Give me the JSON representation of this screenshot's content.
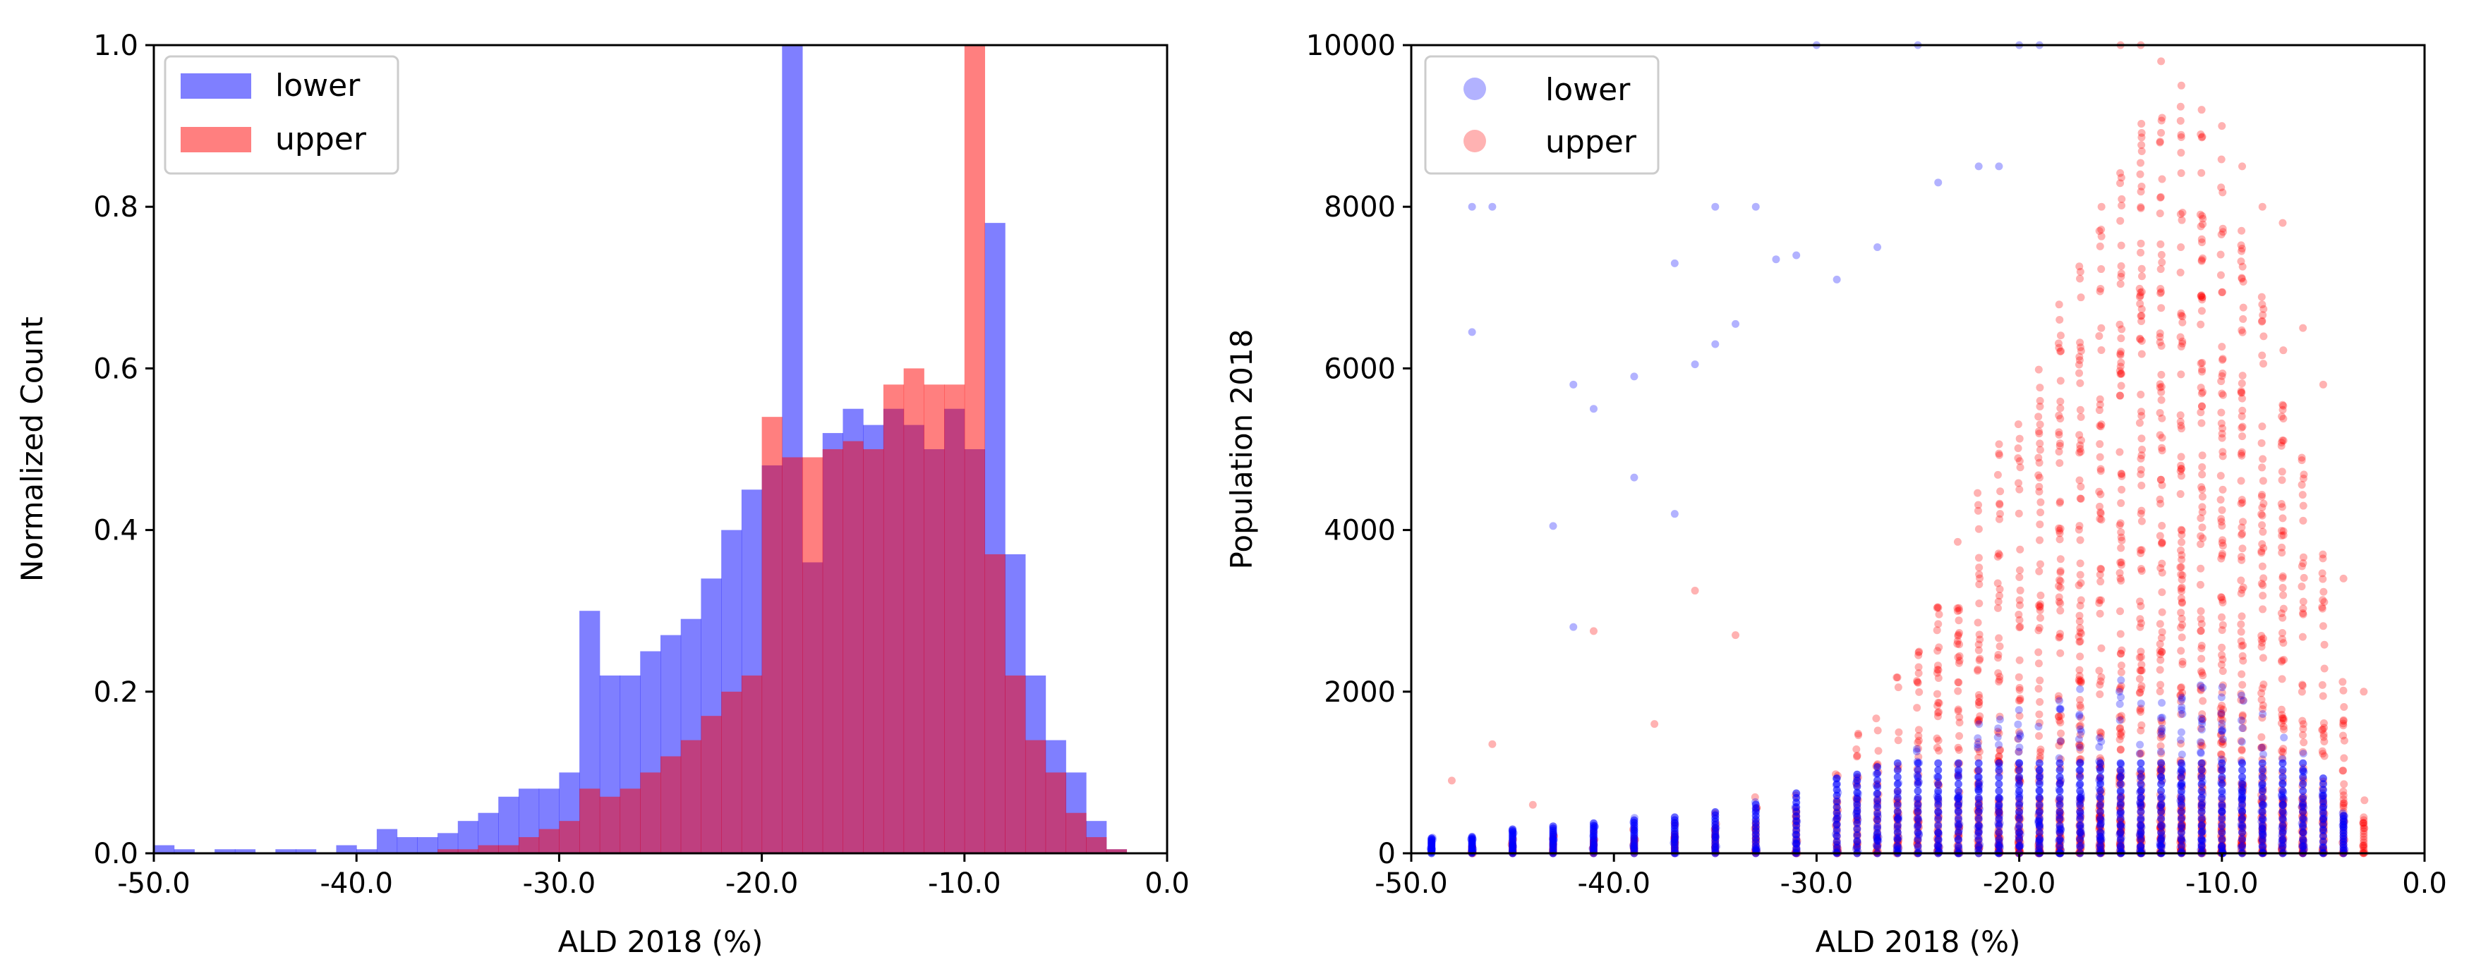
{
  "colors": {
    "lower": "#0000ff",
    "upper": "#ff0000",
    "axis": "#000000",
    "legend_frame": "#cccccc"
  },
  "chart_data": [
    {
      "type": "histogram",
      "title": "",
      "xlabel": "ALD 2018 (%)",
      "ylabel": "Normalized Count",
      "xlim": [
        -50,
        0
      ],
      "ylim": [
        0,
        1.0
      ],
      "xticks": [
        -50,
        -40,
        -30,
        -20,
        -10,
        0
      ],
      "xtick_labels": [
        "-50.0",
        "-40.0",
        "-30.0",
        "-20.0",
        "-10.0",
        "0.0"
      ],
      "yticks": [
        0,
        0.2,
        0.4,
        0.6,
        0.8,
        1.0
      ],
      "ytick_labels": [
        "0.0",
        "0.2",
        "0.4",
        "0.6",
        "0.8",
        "1.0"
      ],
      "legend": [
        "lower",
        "upper"
      ],
      "legend_position": "top-left",
      "bin_width": 1,
      "bin_start": -50,
      "series": [
        {
          "name": "lower",
          "color": "#0000ff",
          "alpha": 0.5,
          "values": [
            0.01,
            0.005,
            0.0,
            0.005,
            0.005,
            0.0,
            0.005,
            0.005,
            0.0,
            0.01,
            0.005,
            0.03,
            0.02,
            0.02,
            0.025,
            0.04,
            0.05,
            0.07,
            0.08,
            0.08,
            0.1,
            0.3,
            0.22,
            0.22,
            0.25,
            0.27,
            0.29,
            0.34,
            0.4,
            0.45,
            0.48,
            1.0,
            0.36,
            0.52,
            0.55,
            0.53,
            0.55,
            0.53,
            0.5,
            0.55,
            0.5,
            0.78,
            0.37,
            0.22,
            0.14,
            0.1,
            0.04,
            0.005,
            0.0,
            0.0
          ]
        },
        {
          "name": "upper",
          "color": "#ff0000",
          "alpha": 0.5,
          "values": [
            0.0,
            0.0,
            0.0,
            0.0,
            0.0,
            0.0,
            0.0,
            0.0,
            0.0,
            0.0,
            0.0,
            0.0,
            0.0,
            0.0,
            0.005,
            0.005,
            0.01,
            0.01,
            0.02,
            0.03,
            0.04,
            0.08,
            0.07,
            0.08,
            0.1,
            0.12,
            0.14,
            0.17,
            0.2,
            0.22,
            0.54,
            0.49,
            0.49,
            0.5,
            0.51,
            0.5,
            0.58,
            0.6,
            0.58,
            0.58,
            1.0,
            0.37,
            0.22,
            0.14,
            0.1,
            0.05,
            0.02,
            0.005,
            0.0,
            0.0
          ]
        }
      ]
    },
    {
      "type": "scatter",
      "title": "",
      "xlabel": "ALD 2018 (%)",
      "ylabel": "Population 2018",
      "xlim": [
        -50,
        0
      ],
      "ylim": [
        0,
        10000
      ],
      "xticks": [
        -50,
        -40,
        -30,
        -20,
        -10,
        0
      ],
      "xtick_labels": [
        "-50.0",
        "-40.0",
        "-30.0",
        "-20.0",
        "-10.0",
        "0.0"
      ],
      "yticks": [
        0,
        2000,
        4000,
        6000,
        8000,
        10000
      ],
      "ytick_labels": [
        "0",
        "2000",
        "4000",
        "6000",
        "8000",
        "10000"
      ],
      "legend": [
        "lower",
        "upper"
      ],
      "legend_position": "top-left",
      "series": [
        {
          "name": "lower",
          "color": "#0000ff",
          "alpha": 0.3,
          "outliers": [
            [
              -47,
              8000
            ],
            [
              -46,
              8000
            ],
            [
              -47,
              6450
            ],
            [
              -42,
              5800
            ],
            [
              -41,
              5500
            ],
            [
              -39,
              5900
            ],
            [
              -39,
              4650
            ],
            [
              -43,
              4050
            ],
            [
              -42,
              2800
            ],
            [
              -37,
              7300
            ],
            [
              -37,
              4200
            ],
            [
              -35,
              8000
            ],
            [
              -33,
              8000
            ],
            [
              -36,
              6050
            ],
            [
              -35,
              6300
            ],
            [
              -34,
              6550
            ],
            [
              -32,
              7350
            ],
            [
              -31,
              7400
            ],
            [
              -29,
              7100
            ],
            [
              -27,
              7500
            ],
            [
              -24,
              8300
            ],
            [
              -22,
              8500
            ],
            [
              -21,
              8500
            ],
            [
              -20,
              10000
            ],
            [
              -19,
              10000
            ],
            [
              -30,
              10000
            ],
            [
              -25,
              10000
            ]
          ],
          "columns": [
            [
              -49,
              200
            ],
            [
              -47,
              220
            ],
            [
              -45,
              320
            ],
            [
              -43,
              360
            ],
            [
              -41,
              400
            ],
            [
              -39,
              440
            ],
            [
              -37,
              480
            ],
            [
              -35,
              550
            ],
            [
              -33,
              650
            ],
            [
              -31,
              800
            ],
            [
              -29,
              1000
            ],
            [
              -28,
              1050
            ],
            [
              -27,
              1150
            ],
            [
              -26,
              1250
            ],
            [
              -25,
              1350
            ],
            [
              -24,
              1450
            ],
            [
              -23,
              1550
            ],
            [
              -22,
              1600
            ],
            [
              -21,
              1700
            ],
            [
              -20,
              1800
            ],
            [
              -19,
              1900
            ],
            [
              -18,
              2000
            ],
            [
              -17,
              2050
            ],
            [
              -16,
              2100
            ],
            [
              -15,
              2150
            ],
            [
              -14,
              2150
            ],
            [
              -13,
              2200
            ],
            [
              -12,
              2200
            ],
            [
              -11,
              2150
            ],
            [
              -10,
              2100
            ],
            [
              -9,
              2000
            ],
            [
              -8,
              1900
            ],
            [
              -7,
              1700
            ],
            [
              -6,
              1400
            ],
            [
              -5,
              1000
            ],
            [
              -4,
              500
            ]
          ]
        },
        {
          "name": "upper",
          "color": "#ff0000",
          "alpha": 0.3,
          "outliers": [
            [
              -48,
              900
            ],
            [
              -46,
              1350
            ],
            [
              -44,
              600
            ],
            [
              -41,
              2750
            ],
            [
              -38,
              1600
            ],
            [
              -36,
              3250
            ],
            [
              -34,
              2700
            ],
            [
              -15,
              10000
            ],
            [
              -14,
              10000
            ],
            [
              -13,
              9800
            ],
            [
              -12,
              9500
            ],
            [
              -11,
              9200
            ],
            [
              -10,
              9000
            ],
            [
              -9,
              8500
            ],
            [
              -8,
              8000
            ],
            [
              -7,
              7800
            ],
            [
              -6,
              6500
            ],
            [
              -5,
              5800
            ],
            [
              -4,
              3400
            ],
            [
              -3,
              2000
            ]
          ],
          "columns": [
            [
              -47,
              150
            ],
            [
              -45,
              200
            ],
            [
              -43,
              250
            ],
            [
              -41,
              300
            ],
            [
              -39,
              350
            ],
            [
              -37,
              450
            ],
            [
              -35,
              550
            ],
            [
              -33,
              700
            ],
            [
              -31,
              900
            ],
            [
              -29,
              1200
            ],
            [
              -28,
              1500
            ],
            [
              -27,
              1800
            ],
            [
              -26,
              2200
            ],
            [
              -25,
              2700
            ],
            [
              -24,
              3300
            ],
            [
              -23,
              3900
            ],
            [
              -22,
              4500
            ],
            [
              -21,
              5100
            ],
            [
              -20,
              5600
            ],
            [
              -19,
              6200
            ],
            [
              -18,
              6900
            ],
            [
              -17,
              7500
            ],
            [
              -16,
              8000
            ],
            [
              -15,
              8700
            ],
            [
              -14,
              9100
            ],
            [
              -13,
              9300
            ],
            [
              -12,
              9300
            ],
            [
              -11,
              9000
            ],
            [
              -10,
              8600
            ],
            [
              -9,
              8000
            ],
            [
              -8,
              7200
            ],
            [
              -7,
              6300
            ],
            [
              -6,
              5200
            ],
            [
              -5,
              3800
            ],
            [
              -4,
              2200
            ],
            [
              -3,
              800
            ]
          ]
        }
      ]
    }
  ]
}
